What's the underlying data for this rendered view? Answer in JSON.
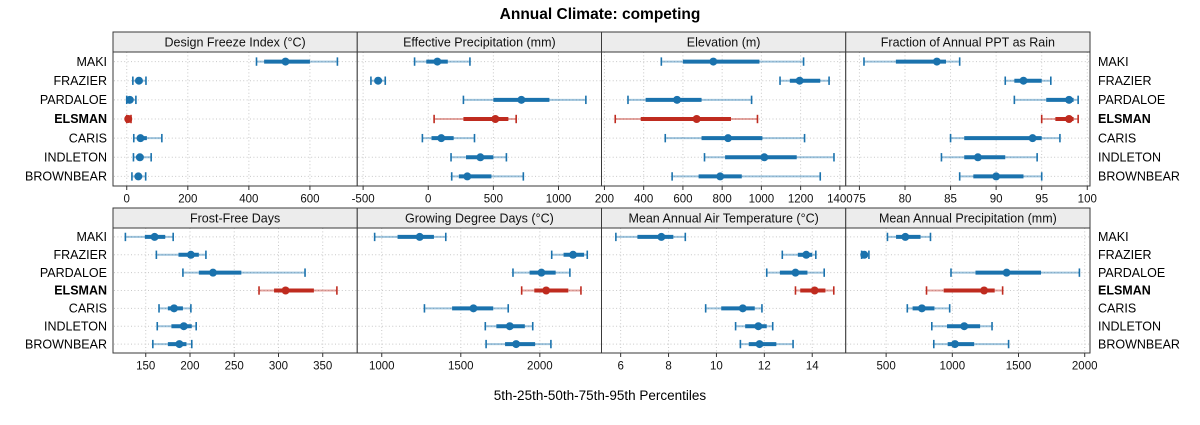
{
  "chart_data": {
    "type": "dotplot",
    "title": "Annual Climate: competing",
    "xlabel": "5th-25th-50th-75th-95th Percentiles",
    "percentiles": [
      5,
      25,
      50,
      75,
      95
    ],
    "sites_top_to_bottom": [
      "MAKI",
      "FRAZIER",
      "PARDALOE",
      "ELSMAN",
      "CARIS",
      "INDLETON",
      "BROWNBEAR"
    ],
    "highlighted_site": "ELSMAN",
    "layout": {
      "rows": 2,
      "cols": 4,
      "grid": "dotted",
      "site_labels_both_sides": true,
      "legend_position": "none"
    },
    "colors": {
      "normal": "#1a72ad",
      "highlight": "#bf2b1f",
      "strip_bg": "#ececec",
      "panel_border": "#3a3a3a",
      "grid": "#c8c8c8"
    },
    "panels": [
      {
        "title": "Design Freeze Index (°C)",
        "row": 0,
        "col": 0,
        "xlim": [
          -45,
          755
        ],
        "ticks": [
          0,
          200,
          400,
          600
        ],
        "series": {
          "MAKI": [
            425,
            450,
            520,
            600,
            690
          ],
          "FRAZIER": [
            20,
            30,
            40,
            50,
            63
          ],
          "PARDALOE": [
            0,
            4,
            10,
            18,
            30
          ],
          "ELSMAN": [
            0,
            2,
            5,
            9,
            14
          ],
          "CARIS": [
            23,
            35,
            45,
            66,
            115
          ],
          "INDLETON": [
            22,
            33,
            43,
            55,
            80
          ],
          "BROWNBEAR": [
            17,
            28,
            38,
            48,
            62
          ]
        }
      },
      {
        "title": "Effective Precipitation (mm)",
        "row": 0,
        "col": 1,
        "xlim": [
          -545,
          1330
        ],
        "ticks": [
          -500,
          0,
          500,
          1000
        ],
        "series": {
          "MAKI": [
            -105,
            -15,
            70,
            150,
            320
          ],
          "FRAZIER": [
            -440,
            -410,
            -385,
            -360,
            -330
          ],
          "PARDALOE": [
            270,
            500,
            715,
            930,
            1210
          ],
          "ELSMAN": [
            45,
            270,
            515,
            615,
            675
          ],
          "CARIS": [
            -45,
            25,
            100,
            195,
            355
          ],
          "INDLETON": [
            175,
            290,
            400,
            500,
            600
          ],
          "BROWNBEAR": [
            180,
            235,
            300,
            485,
            730
          ]
        }
      },
      {
        "title": "Elevation (m)",
        "row": 0,
        "col": 2,
        "xlim": [
          185,
          1430
        ],
        "ticks": [
          200,
          400,
          600,
          800,
          1000,
          1200,
          1400
        ],
        "series": {
          "MAKI": [
            490,
            600,
            755,
            990,
            1215
          ],
          "FRAZIER": [
            1095,
            1145,
            1195,
            1300,
            1345
          ],
          "PARDALOE": [
            320,
            410,
            570,
            695,
            950
          ],
          "ELSMAN": [
            255,
            385,
            670,
            845,
            980
          ],
          "CARIS": [
            510,
            695,
            830,
            1005,
            1220
          ],
          "INDLETON": [
            710,
            815,
            1015,
            1180,
            1370
          ],
          "BROWNBEAR": [
            545,
            680,
            790,
            900,
            1300
          ]
        }
      },
      {
        "title": "Fraction of Annual PPT as Rain",
        "row": 0,
        "col": 3,
        "xlim": [
          73.5,
          100.3
        ],
        "ticks": [
          75,
          80,
          85,
          90,
          95,
          100
        ],
        "series": {
          "MAKI": [
            75.5,
            79,
            83.5,
            84.5,
            86
          ],
          "FRAZIER": [
            91,
            92,
            93,
            95,
            96
          ],
          "PARDALOE": [
            92,
            95.5,
            98,
            98.5,
            99
          ],
          "ELSMAN": [
            95,
            96.5,
            98,
            98.5,
            99
          ],
          "CARIS": [
            85,
            86.5,
            94,
            95,
            97
          ],
          "INDLETON": [
            84,
            86.5,
            88,
            91,
            94.5
          ],
          "BROWNBEAR": [
            86,
            87.5,
            90,
            93,
            95
          ]
        }
      },
      {
        "title": "Frost-Free Days",
        "row": 1,
        "col": 0,
        "xlim": [
          113,
          389
        ],
        "ticks": [
          150,
          200,
          250,
          300,
          350
        ],
        "series": {
          "MAKI": [
            127,
            149,
            160,
            172,
            181
          ],
          "FRAZIER": [
            162,
            187,
            201,
            210,
            218
          ],
          "PARDALOE": [
            192,
            210,
            226,
            258,
            330
          ],
          "ELSMAN": [
            278,
            295,
            308,
            340,
            366
          ],
          "CARIS": [
            165,
            175,
            182,
            192,
            201
          ],
          "INDLETON": [
            163,
            179,
            193,
            202,
            207
          ],
          "BROWNBEAR": [
            158,
            175,
            188,
            196,
            202
          ]
        }
      },
      {
        "title": "Growing Degree Days (°C)",
        "row": 1,
        "col": 1,
        "xlim": [
          845,
          2390
        ],
        "ticks": [
          1000,
          1500,
          2000
        ],
        "series": {
          "MAKI": [
            955,
            1100,
            1240,
            1330,
            1405
          ],
          "FRAZIER": [
            2075,
            2150,
            2210,
            2280,
            2300
          ],
          "PARDALOE": [
            1830,
            1935,
            2010,
            2100,
            2190
          ],
          "ELSMAN": [
            1885,
            1965,
            2040,
            2180,
            2260
          ],
          "CARIS": [
            1270,
            1445,
            1580,
            1705,
            1800
          ],
          "INDLETON": [
            1655,
            1725,
            1810,
            1905,
            1955
          ],
          "BROWNBEAR": [
            1660,
            1780,
            1850,
            1970,
            2070
          ]
        }
      },
      {
        "title": "Mean Annual Air Temperature (°C)",
        "row": 1,
        "col": 2,
        "xlim": [
          5.2,
          15.4
        ],
        "ticks": [
          6,
          8,
          10,
          12,
          14
        ],
        "series": {
          "MAKI": [
            5.8,
            6.7,
            7.7,
            8.2,
            8.7
          ],
          "FRAZIER": [
            12.75,
            13.4,
            13.75,
            14.0,
            14.15
          ],
          "PARDALOE": [
            12.1,
            12.65,
            13.3,
            13.8,
            14.5
          ],
          "ELSMAN": [
            13.3,
            13.5,
            14.1,
            14.55,
            14.9
          ],
          "CARIS": [
            9.55,
            10.2,
            11.1,
            11.6,
            11.9
          ],
          "INDLETON": [
            10.8,
            11.2,
            11.75,
            12.1,
            12.35
          ],
          "BROWNBEAR": [
            11.0,
            11.35,
            11.8,
            12.5,
            13.2
          ]
        }
      },
      {
        "title": "Mean Annual Precipitation (mm)",
        "row": 1,
        "col": 3,
        "xlim": [
          195,
          2040
        ],
        "ticks": [
          500,
          1000,
          1500,
          2000
        ],
        "series": {
          "MAKI": [
            510,
            575,
            645,
            760,
            835
          ],
          "FRAZIER": [
            315,
            325,
            335,
            350,
            370
          ],
          "PARDALOE": [
            990,
            1175,
            1410,
            1670,
            1960
          ],
          "ELSMAN": [
            805,
            935,
            1240,
            1320,
            1380
          ],
          "CARIS": [
            660,
            700,
            770,
            865,
            980
          ],
          "INDLETON": [
            845,
            960,
            1090,
            1210,
            1300
          ],
          "BROWNBEAR": [
            860,
            965,
            1020,
            1165,
            1425
          ]
        }
      }
    ]
  }
}
